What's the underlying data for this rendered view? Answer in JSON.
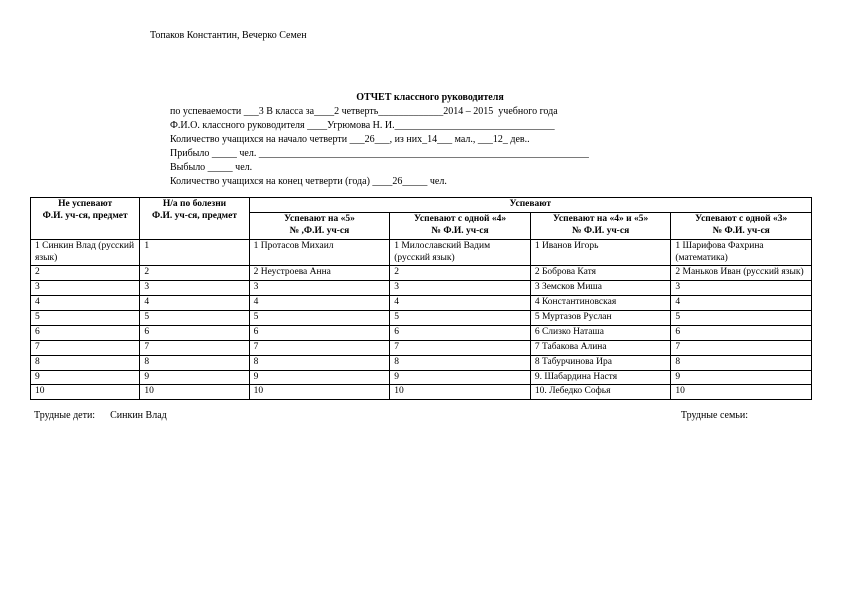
{
  "names_header": "Топаков Константин, Вечерко Семен",
  "title": "ОТЧЕТ    классного руководителя",
  "line_usp": "по успеваемости ___3 В класса за____2 четверть_____________2014 – 2015  учебного года",
  "line_fio": "Ф.И.О. классного руководителя ____Угрюмова Н. И.________________________________",
  "line_count_start": "Количество учащихся на начало четверти ___26___, из них_14___ мал., ___12_ дев..",
  "line_pribylo": "Прибыло _____ чел. __________________________________________________________________",
  "line_vybylo": "Выбыло _____ чел.",
  "line_count_end": "Количество учащихся на конец четверти (года) ____26_____ чел.",
  "headers": {
    "h1": "Не успевают",
    "h1b": "Ф.И. уч-ся, предмет",
    "h2": "Н/а по болезни",
    "h2b": "Ф.И. уч-ся, предмет",
    "h_main": "Успевают",
    "h3a": "Успевают на «5»",
    "h3b": "№ ,Ф.И. уч-ся",
    "h4a": "Успевают с одной «4»",
    "h4b": "№ Ф.И. уч-ся",
    "h5a": "Успевают на «4» и «5»",
    "h5b": "№ Ф.И. уч-ся",
    "h6a": "Успевают с одной «3»",
    "h6b": "№ Ф.И. уч-ся"
  },
  "rows": [
    {
      "c1": "1 Синкин Влад (русский язык)",
      "c2": "1",
      "c3": "1 Протасов Михаил",
      "c4": "1 Милославский Вадим (русский язык)",
      "c5": "1 Иванов Игорь",
      "c6": "1 Шарифова Фахрина (математика)"
    },
    {
      "c1": "2",
      "c2": "2",
      "c3": "2 Неустроева Анна",
      "c4": "2",
      "c5": "2 Боброва Катя",
      "c6": "2 Маньков Иван (русский язык)"
    },
    {
      "c1": "3",
      "c2": "3",
      "c3": "3",
      "c4": "3",
      "c5": "3 Земсков Миша",
      "c6": "3"
    },
    {
      "c1": "4",
      "c2": "4",
      "c3": "4",
      "c4": "4",
      "c5": "4 Константиновская",
      "c6": "4"
    },
    {
      "c1": "5",
      "c2": "5",
      "c3": "5",
      "c4": "5",
      "c5": "5 Муртазов Руслан",
      "c6": "5"
    },
    {
      "c1": "6",
      "c2": "6",
      "c3": "6",
      "c4": "6",
      "c5": "6 Слизко Наташа",
      "c6": "6"
    },
    {
      "c1": "7",
      "c2": "7",
      "c3": "7",
      "c4": "7",
      "c5": "7 Табакова Алина",
      "c6": "7"
    },
    {
      "c1": "8",
      "c2": "8",
      "c3": "8",
      "c4": "8",
      "c5": "8 Табурчинова Ира",
      "c6": "8"
    },
    {
      "c1": "9",
      "c2": "9",
      "c3": "9",
      "c4": "9",
      "c5": "9. Шабардина Настя",
      "c6": "9"
    },
    {
      "c1": "10",
      "c2": "10",
      "c3": "10",
      "c4": "10",
      "c5": "10. Лебедко Софья",
      "c6": "10"
    }
  ],
  "footer_left_label": "Трудные дети:",
  "footer_left_value": "Синкин Влад",
  "footer_right_label": "Трудные семьи:"
}
